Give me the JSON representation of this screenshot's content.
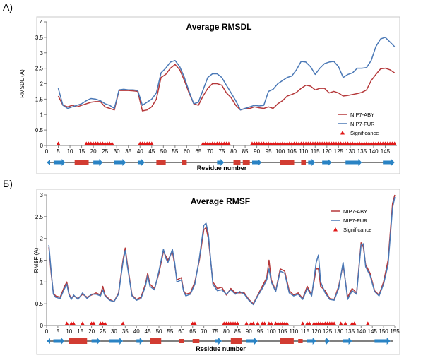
{
  "panels": [
    {
      "label": "А)"
    },
    {
      "label": "Б)"
    }
  ],
  "colors": {
    "aby": "#b5383a",
    "fur": "#4a78b6",
    "sig": "#e01818",
    "arrow": "#2a83c4",
    "helix": "#d23c32"
  },
  "chart_data": [
    {
      "type": "line",
      "title": "Average RMSDL",
      "xlabel": "Residue number",
      "ylabel": "RMSDL (A)",
      "xlim": [
        0,
        150
      ],
      "ylim": [
        0,
        4
      ],
      "x_ticks": [
        "0",
        "5",
        "10",
        "15",
        "20",
        "25",
        "30",
        "35",
        "40",
        "45",
        "50",
        "55",
        "60",
        "65",
        "70",
        "75",
        "80",
        "85",
        "90",
        "95",
        "100",
        "105",
        "110",
        "115",
        "120",
        "125",
        "130",
        "135",
        "140",
        "145"
      ],
      "y_ticks": [
        "0",
        "0.5",
        "1",
        "1.5",
        "2",
        "2.5",
        "3",
        "3.5",
        "4"
      ],
      "legend": {
        "position": "right",
        "entries": [
          "NIP7-ABY",
          "NIP7-FUR",
          "Significance"
        ]
      },
      "series": [
        {
          "name": "NIP7-ABY",
          "x": [
            5,
            7,
            9,
            11,
            13,
            15,
            17,
            19,
            21,
            23,
            25,
            27,
            29,
            31,
            33,
            35,
            37,
            39,
            41,
            43,
            45,
            47,
            49,
            51,
            53,
            55,
            57,
            59,
            61,
            63,
            65,
            67,
            69,
            71,
            73,
            75,
            77,
            79,
            81,
            83,
            85,
            87,
            89,
            91,
            93,
            95,
            97,
            99,
            101,
            103,
            105,
            107,
            109,
            111,
            113,
            115,
            117,
            119,
            121,
            123,
            125,
            127,
            129,
            131,
            133,
            135,
            137,
            139,
            141,
            143,
            145,
            147,
            149
          ],
          "values": [
            1.6,
            1.3,
            1.25,
            1.3,
            1.25,
            1.3,
            1.35,
            1.4,
            1.42,
            1.42,
            1.25,
            1.2,
            1.15,
            1.78,
            1.78,
            1.78,
            1.77,
            1.75,
            1.12,
            1.15,
            1.25,
            1.5,
            2.2,
            2.3,
            2.5,
            2.62,
            2.45,
            2.1,
            1.7,
            1.35,
            1.3,
            1.6,
            1.85,
            2.0,
            2.0,
            1.95,
            1.7,
            1.55,
            1.3,
            1.15,
            1.2,
            1.2,
            1.25,
            1.22,
            1.2,
            1.25,
            1.2,
            1.35,
            1.45,
            1.6,
            1.65,
            1.72,
            1.85,
            1.95,
            1.92,
            1.8,
            1.85,
            1.85,
            1.7,
            1.75,
            1.7,
            1.6,
            1.62,
            1.65,
            1.68,
            1.72,
            1.8,
            2.1,
            2.3,
            2.48,
            2.5,
            2.45,
            2.35
          ]
        },
        {
          "name": "NIP7-FUR",
          "x": [
            5,
            7,
            9,
            11,
            13,
            15,
            17,
            19,
            21,
            23,
            25,
            27,
            29,
            31,
            33,
            35,
            37,
            39,
            41,
            43,
            45,
            47,
            49,
            51,
            53,
            55,
            57,
            59,
            61,
            63,
            65,
            67,
            69,
            71,
            73,
            75,
            77,
            79,
            81,
            83,
            85,
            87,
            89,
            91,
            93,
            95,
            97,
            99,
            101,
            103,
            105,
            107,
            109,
            111,
            113,
            115,
            117,
            119,
            121,
            123,
            125,
            127,
            129,
            131,
            133,
            135,
            137,
            139,
            141,
            143,
            145,
            147,
            149
          ],
          "values": [
            1.85,
            1.3,
            1.2,
            1.25,
            1.3,
            1.35,
            1.45,
            1.52,
            1.5,
            1.45,
            1.35,
            1.3,
            1.2,
            1.8,
            1.82,
            1.8,
            1.8,
            1.78,
            1.3,
            1.4,
            1.5,
            1.7,
            2.35,
            2.5,
            2.7,
            2.75,
            2.55,
            2.2,
            1.75,
            1.35,
            1.4,
            1.8,
            2.2,
            2.32,
            2.32,
            2.2,
            1.95,
            1.7,
            1.45,
            1.15,
            1.2,
            1.25,
            1.3,
            1.28,
            1.3,
            1.75,
            1.82,
            2.0,
            2.1,
            2.2,
            2.25,
            2.45,
            2.72,
            2.7,
            2.55,
            2.3,
            2.5,
            2.65,
            2.7,
            2.72,
            2.55,
            2.2,
            2.3,
            2.35,
            2.5,
            2.5,
            2.52,
            2.75,
            3.2,
            3.45,
            3.5,
            3.35,
            3.2
          ]
        }
      ],
      "significance_x": [
        5,
        17,
        18,
        19,
        20,
        21,
        22,
        23,
        24,
        25,
        26,
        27,
        28,
        40,
        41,
        42,
        43,
        44,
        45,
        67,
        68,
        69,
        70,
        71,
        72,
        73,
        74,
        75,
        76,
        77,
        78,
        88,
        89,
        90,
        91,
        92,
        93,
        94,
        95,
        96,
        97,
        98,
        99,
        100,
        101,
        102,
        103,
        104,
        105,
        106,
        107,
        108,
        109,
        110,
        111,
        112,
        113,
        114,
        115,
        116,
        117,
        118,
        119,
        120,
        121,
        122,
        123,
        124,
        125,
        126,
        127,
        128,
        129,
        130,
        131,
        132,
        133,
        134,
        135,
        136,
        137,
        138,
        139,
        140,
        141,
        142,
        143,
        144,
        145,
        146,
        147,
        148,
        149
      ],
      "secondary_structure": {
        "strands": [
          [
            3,
            8
          ],
          [
            20,
            24
          ],
          [
            29,
            34
          ],
          [
            39,
            42
          ],
          [
            73,
            76
          ],
          [
            88,
            92
          ],
          [
            112,
            115
          ],
          [
            118,
            122
          ],
          [
            128,
            135
          ],
          [
            144,
            149
          ]
        ],
        "long_helices": [
          [
            12,
            18
          ],
          [
            47,
            51
          ],
          [
            84,
            87
          ],
          [
            100,
            106
          ]
        ],
        "short_helices": [
          [
            58,
            60
          ],
          [
            80,
            83
          ],
          [
            109,
            111
          ]
        ],
        "right_arrows": [
          [
            3,
            8
          ],
          [
            20,
            24
          ],
          [
            29,
            34
          ],
          [
            39,
            42
          ],
          [
            73,
            76
          ],
          [
            88,
            92
          ],
          [
            118,
            122
          ],
          [
            128,
            135
          ],
          [
            144,
            149
          ]
        ]
      }
    },
    {
      "type": "line",
      "title": "Average RMSF",
      "xlabel": "Residue number",
      "ylabel": "RMSF (A)",
      "xlim": [
        0,
        155
      ],
      "ylim": [
        0,
        3
      ],
      "x_ticks": [
        "0",
        "5",
        "10",
        "15",
        "20",
        "25",
        "30",
        "35",
        "40",
        "45",
        "50",
        "55",
        "60",
        "65",
        "70",
        "75",
        "80",
        "85",
        "90",
        "95",
        "100",
        "105",
        "110",
        "115",
        "120",
        "125",
        "130",
        "135",
        "140",
        "145",
        "150",
        "155"
      ],
      "y_ticks": [
        "0",
        "0.5",
        "1",
        "1.5",
        "2",
        "2.5",
        "3"
      ],
      "legend": {
        "position": "top-right",
        "entries": [
          "NIP7-ABY",
          "NIP7-FUR",
          "Significance"
        ]
      },
      "series": [
        {
          "name": "NIP7-ABY",
          "x": [
            1,
            2,
            3,
            4,
            6,
            8,
            9,
            10,
            11,
            12,
            14,
            16,
            18,
            20,
            22,
            24,
            25,
            26,
            28,
            30,
            32,
            34,
            35,
            36,
            38,
            40,
            42,
            44,
            45,
            46,
            48,
            50,
            52,
            53,
            54,
            56,
            57,
            58,
            60,
            61,
            62,
            64,
            66,
            68,
            70,
            71,
            72,
            74,
            76,
            78,
            80,
            82,
            84,
            86,
            88,
            90,
            92,
            94,
            96,
            98,
            99,
            100,
            102,
            104,
            106,
            108,
            110,
            112,
            114,
            116,
            118,
            120,
            121,
            122,
            124,
            126,
            128,
            130,
            132,
            134,
            136,
            138,
            140,
            141,
            142,
            144,
            146,
            148,
            150,
            152,
            154,
            155
          ],
          "values": [
            1.8,
            1.2,
            0.75,
            0.68,
            0.65,
            0.9,
            1.0,
            0.72,
            0.62,
            0.68,
            0.62,
            0.72,
            0.65,
            0.7,
            0.75,
            0.7,
            0.9,
            0.7,
            0.6,
            0.55,
            0.75,
            1.5,
            1.78,
            1.4,
            0.7,
            0.6,
            0.65,
            0.95,
            1.2,
            0.95,
            0.85,
            1.2,
            1.7,
            1.6,
            1.5,
            1.7,
            1.4,
            1.05,
            1.1,
            0.8,
            0.72,
            0.75,
            1.0,
            1.5,
            2.2,
            2.25,
            2.0,
            1.0,
            0.85,
            0.88,
            0.7,
            0.85,
            0.75,
            0.75,
            0.75,
            0.6,
            0.5,
            0.7,
            0.9,
            1.1,
            1.5,
            1.05,
            0.8,
            1.3,
            1.25,
            0.8,
            0.7,
            0.75,
            0.62,
            0.9,
            0.7,
            1.3,
            1.3,
            0.9,
            0.8,
            0.62,
            0.6,
            0.9,
            1.4,
            0.65,
            0.85,
            0.75,
            1.9,
            1.8,
            1.4,
            1.2,
            0.8,
            0.7,
            1.0,
            1.5,
            2.8,
            3.0
          ]
        },
        {
          "name": "NIP7-FUR",
          "x": [
            1,
            2,
            3,
            4,
            6,
            8,
            9,
            10,
            11,
            12,
            14,
            16,
            18,
            20,
            22,
            24,
            25,
            26,
            28,
            30,
            32,
            34,
            35,
            36,
            38,
            40,
            42,
            44,
            45,
            46,
            48,
            50,
            52,
            53,
            54,
            56,
            57,
            58,
            60,
            61,
            62,
            64,
            66,
            68,
            70,
            71,
            72,
            74,
            76,
            78,
            80,
            82,
            84,
            86,
            88,
            90,
            92,
            94,
            96,
            98,
            99,
            100,
            102,
            104,
            106,
            108,
            110,
            112,
            114,
            116,
            118,
            120,
            121,
            122,
            124,
            126,
            128,
            130,
            132,
            134,
            136,
            138,
            140,
            141,
            142,
            144,
            146,
            148,
            150,
            152,
            154,
            155
          ],
          "values": [
            1.85,
            1.25,
            0.72,
            0.65,
            0.62,
            0.85,
            0.95,
            0.7,
            0.6,
            0.7,
            0.6,
            0.75,
            0.62,
            0.72,
            0.72,
            0.68,
            0.82,
            0.68,
            0.58,
            0.55,
            0.72,
            1.45,
            1.72,
            1.35,
            0.68,
            0.58,
            0.62,
            0.9,
            1.15,
            0.9,
            0.82,
            1.25,
            1.75,
            1.55,
            1.45,
            1.75,
            1.45,
            1.0,
            1.05,
            0.78,
            0.68,
            0.72,
            0.95,
            1.55,
            2.3,
            2.35,
            2.1,
            0.95,
            0.8,
            0.82,
            0.72,
            0.82,
            0.72,
            0.78,
            0.72,
            0.58,
            0.48,
            0.68,
            0.85,
            1.05,
            1.3,
            1.0,
            0.78,
            1.25,
            1.2,
            0.75,
            0.68,
            0.72,
            0.6,
            0.85,
            0.68,
            1.45,
            1.62,
            1.0,
            0.75,
            0.6,
            0.58,
            0.85,
            1.45,
            0.6,
            0.8,
            0.72,
            1.85,
            1.88,
            1.35,
            1.15,
            0.78,
            0.68,
            0.95,
            1.4,
            2.7,
            2.95
          ]
        }
      ],
      "significance_x": [
        9,
        11,
        12,
        16,
        20,
        21,
        24,
        25,
        26,
        34,
        65,
        66,
        79,
        80,
        81,
        82,
        83,
        84,
        85,
        89,
        91,
        92,
        94,
        96,
        97,
        99,
        100,
        102,
        103,
        104,
        105,
        106,
        107,
        114,
        116,
        117,
        119,
        120,
        121,
        122,
        123,
        124,
        125,
        126,
        127,
        128,
        131,
        133,
        136,
        137,
        143
      ],
      "secondary_structure": {
        "strands": [
          [
            3,
            8
          ],
          [
            20,
            24
          ],
          [
            28,
            34
          ],
          [
            40,
            43
          ],
          [
            75,
            78
          ],
          [
            89,
            94
          ],
          [
            116,
            120
          ],
          [
            124,
            126
          ],
          [
            132,
            136
          ],
          [
            146,
            153
          ]
        ],
        "long_helices": [
          [
            10,
            18
          ],
          [
            46,
            51
          ],
          [
            82,
            87
          ],
          [
            104,
            110
          ]
        ],
        "short_helices": [
          [
            59,
            61
          ],
          [
            65,
            68
          ],
          [
            112,
            114
          ]
        ],
        "right_arrows": [
          [
            3,
            8
          ],
          [
            20,
            24
          ],
          [
            28,
            34
          ],
          [
            40,
            43
          ],
          [
            75,
            78
          ],
          [
            89,
            94
          ],
          [
            116,
            120
          ],
          [
            124,
            126
          ],
          [
            132,
            136
          ],
          [
            146,
            153
          ]
        ]
      }
    }
  ]
}
